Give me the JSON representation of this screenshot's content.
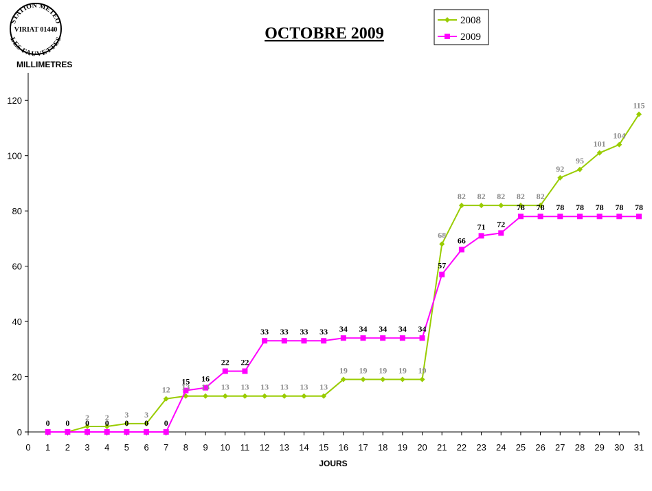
{
  "stamp": {
    "top_text": "STATION METEO",
    "middle_text": "VIRIAT 01440",
    "bottom_text": "LES FAUVETTES"
  },
  "chart_data": {
    "type": "line",
    "title": "OCTOBRE 2009",
    "ylabel": "MILLIMETRES",
    "xlabel": "JOURS",
    "xlim": [
      0,
      31
    ],
    "ylim": [
      0,
      130
    ],
    "x_ticks": [
      0,
      1,
      2,
      3,
      4,
      5,
      6,
      7,
      8,
      9,
      10,
      11,
      12,
      13,
      14,
      15,
      16,
      17,
      18,
      19,
      20,
      21,
      22,
      23,
      24,
      25,
      26,
      27,
      28,
      29,
      30,
      31
    ],
    "y_ticks": [
      0,
      20,
      40,
      60,
      80,
      100,
      120
    ],
    "grid": false,
    "legend_position": "top-right",
    "x": [
      1,
      2,
      3,
      4,
      5,
      6,
      7,
      8,
      9,
      10,
      11,
      12,
      13,
      14,
      15,
      16,
      17,
      18,
      19,
      20,
      21,
      22,
      23,
      24,
      25,
      26,
      27,
      28,
      29,
      30,
      31
    ],
    "series": [
      {
        "name": "2008",
        "color": "#99cc00",
        "label_color": "#8c8c8c",
        "marker": "diamond",
        "values": [
          0,
          0,
          2,
          2,
          3,
          3,
          12,
          13,
          13,
          13,
          13,
          13,
          13,
          13,
          13,
          19,
          19,
          19,
          19,
          19,
          68,
          82,
          82,
          82,
          82,
          82,
          92,
          95,
          101,
          104,
          115
        ],
        "labels": [
          "",
          "",
          "2",
          "2",
          "3",
          "3",
          "12",
          "13",
          "13",
          "13",
          "13",
          "13",
          "13",
          "13",
          "13",
          "19",
          "19",
          "19",
          "19",
          "19",
          "68",
          "82",
          "82",
          "82",
          "82",
          "82",
          "92",
          "95",
          "101",
          "104",
          "115"
        ]
      },
      {
        "name": "2009",
        "color": "#ff00ff",
        "label_color": "#000000",
        "marker": "square",
        "values": [
          0,
          0,
          0,
          0,
          0,
          0,
          0,
          15,
          16,
          22,
          22,
          33,
          33,
          33,
          33,
          34,
          34,
          34,
          34,
          34,
          57,
          66,
          71,
          72,
          78,
          78,
          78,
          78,
          78,
          78,
          78
        ],
        "labels": [
          "0",
          "0",
          "0",
          "0",
          "0",
          "0",
          "0",
          "15",
          "16",
          "22",
          "22",
          "33",
          "33",
          "33",
          "33",
          "34",
          "34",
          "34",
          "34",
          "34",
          "57",
          "66",
          "71",
          "72",
          "78",
          "78",
          "78",
          "78",
          "78",
          "78",
          "78"
        ]
      }
    ]
  }
}
